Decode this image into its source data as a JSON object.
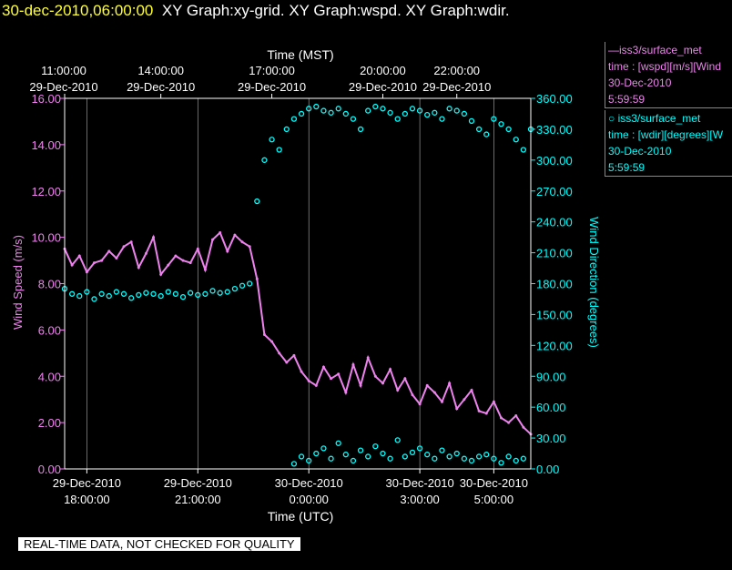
{
  "header": {
    "timestamp": "30-dec-2010,06:00:00",
    "graphs": "XY Graph:xy-grid.  XY Graph:wspd.  XY Graph:wdir."
  },
  "legend": {
    "wspd": {
      "source": "—iss3/surface_met",
      "var": "time : [wspd][m/s][Wind",
      "date": "30-Dec-2010",
      "time": "5:59:59"
    },
    "wdir": {
      "source": "○ iss3/surface_met",
      "var": "time : [wdir][degrees][W",
      "date": "30-Dec-2010",
      "time": "5:59:59"
    }
  },
  "note": "REAL-TIME DATA, NOT CHECKED FOR QUALITY",
  "colors": {
    "wspd": "#ee82ee",
    "wdir": "#00ffff",
    "grid": "#ffffff",
    "timestamp": "#ffff33"
  },
  "chart_data": {
    "type": "line",
    "top_axis_title": "Time (MST)",
    "bottom_axis_title": "Time (UTC)",
    "left_axis_title": "Wind Speed (m/s)",
    "right_axis_title": "Wind Direction (degrees)",
    "x_range_utc_hours": [
      -6.6,
      6.0
    ],
    "top_ticks": [
      {
        "x": -7.0,
        "time": "11:00:00",
        "date": "29-Dec-2010"
      },
      {
        "x": -4.0,
        "time": "14:00:00",
        "date": "29-Dec-2010"
      },
      {
        "x": -1.0,
        "time": "17:00:00",
        "date": "29-Dec-2010"
      },
      {
        "x": 2.0,
        "time": "20:00:00",
        "date": "29-Dec-2010"
      },
      {
        "x": 4.0,
        "time": "22:00:00",
        "date": "29-Dec-2010"
      }
    ],
    "bottom_ticks": [
      {
        "x": -6.0,
        "date": "29-Dec-2010",
        "time": "18:00:00"
      },
      {
        "x": -3.0,
        "date": "29-Dec-2010",
        "time": "21:00:00"
      },
      {
        "x": 0.0,
        "date": "30-Dec-2010",
        "time": "0:00:00"
      },
      {
        "x": 3.0,
        "date": "30-Dec-2010",
        "time": "3:00:00"
      },
      {
        "x": 5.0,
        "date": "30-Dec-2010",
        "time": "5:00:00"
      }
    ],
    "left_ticks": [
      "0.00",
      "2.00",
      "4.00",
      "6.00",
      "8.00",
      "10.00",
      "12.00",
      "14.00",
      "16.00"
    ],
    "right_ticks": [
      "0.00",
      "30.00",
      "60.00",
      "90.00",
      "120.00",
      "150.00",
      "180.00",
      "210.00",
      "240.00",
      "270.00",
      "300.00",
      "330.00",
      "360.00"
    ],
    "ylim_wspd": [
      0,
      16
    ],
    "ylim_wdir": [
      0,
      360
    ],
    "grid": true,
    "series": [
      {
        "key": "wspd",
        "axis": "left",
        "style": "line",
        "x": [
          -6.6,
          -6.4,
          -6.2,
          -6.0,
          -5.8,
          -5.6,
          -5.4,
          -5.2,
          -5.0,
          -4.8,
          -4.6,
          -4.4,
          -4.2,
          -4.0,
          -3.8,
          -3.6,
          -3.4,
          -3.2,
          -3.0,
          -2.8,
          -2.6,
          -2.4,
          -2.2,
          -2.0,
          -1.8,
          -1.6,
          -1.4,
          -1.2,
          -1.0,
          -0.8,
          -0.6,
          -0.4,
          -0.2,
          0.0,
          0.2,
          0.4,
          0.6,
          0.8,
          1.0,
          1.2,
          1.4,
          1.6,
          1.8,
          2.0,
          2.2,
          2.4,
          2.6,
          2.8,
          3.0,
          3.2,
          3.4,
          3.6,
          3.8,
          4.0,
          4.2,
          4.4,
          4.6,
          4.8,
          5.0,
          5.2,
          5.4,
          5.6,
          5.8,
          6.0
        ],
        "values": [
          9.5,
          8.8,
          9.2,
          8.5,
          8.9,
          9.0,
          9.4,
          9.1,
          9.6,
          9.8,
          8.7,
          9.3,
          10.0,
          8.4,
          8.8,
          9.2,
          9.0,
          8.9,
          9.5,
          8.6,
          9.9,
          10.2,
          9.4,
          10.1,
          9.8,
          9.6,
          8.2,
          5.8,
          5.5,
          5.0,
          4.6,
          4.9,
          4.2,
          3.8,
          3.6,
          4.4,
          3.9,
          4.1,
          3.3,
          4.5,
          3.6,
          4.8,
          4.0,
          3.7,
          4.3,
          3.4,
          3.9,
          3.2,
          2.8,
          3.6,
          3.3,
          2.9,
          3.7,
          2.6,
          3.0,
          3.4,
          2.5,
          2.4,
          2.9,
          2.2,
          2.0,
          2.3,
          1.8,
          1.5
        ]
      },
      {
        "key": "wdir",
        "axis": "right",
        "style": "points",
        "x": [
          -6.6,
          -6.4,
          -6.2,
          -6.0,
          -5.8,
          -5.6,
          -5.4,
          -5.2,
          -5.0,
          -4.8,
          -4.6,
          -4.4,
          -4.2,
          -4.0,
          -3.8,
          -3.6,
          -3.4,
          -3.2,
          -3.0,
          -2.8,
          -2.6,
          -2.4,
          -2.2,
          -2.0,
          -1.8,
          -1.6,
          -1.4,
          -1.2,
          -1.0,
          -0.8,
          -0.6,
          -0.4,
          -0.2,
          0.0,
          0.2,
          0.4,
          0.6,
          0.8,
          1.0,
          1.2,
          1.4,
          1.6,
          1.8,
          2.0,
          2.2,
          2.4,
          2.6,
          2.8,
          3.0,
          3.2,
          3.4,
          3.6,
          3.8,
          4.0,
          4.2,
          4.4,
          4.6,
          4.8,
          5.0,
          5.2,
          5.4,
          5.6,
          5.8,
          6.0
        ],
        "values": [
          175,
          170,
          168,
          172,
          165,
          170,
          168,
          172,
          170,
          166,
          169,
          171,
          170,
          168,
          172,
          170,
          167,
          171,
          169,
          170,
          173,
          171,
          172,
          175,
          178,
          180,
          260,
          300,
          320,
          310,
          330,
          340,
          345,
          350,
          352,
          348,
          346,
          350,
          345,
          340,
          330,
          348,
          352,
          350,
          346,
          340,
          345,
          350,
          348,
          344,
          346,
          340,
          350,
          348,
          345,
          338,
          330,
          325,
          340,
          335,
          330,
          320,
          310,
          330
        ]
      },
      {
        "key": "wdir_low",
        "axis": "right",
        "style": "points",
        "x": [
          -0.4,
          -0.2,
          0.0,
          0.2,
          0.4,
          0.6,
          0.8,
          1.0,
          1.2,
          1.4,
          1.6,
          1.8,
          2.0,
          2.2,
          2.4,
          2.6,
          2.8,
          3.0,
          3.2,
          3.4,
          3.6,
          3.8,
          4.0,
          4.2,
          4.4,
          4.6,
          4.8,
          5.0,
          5.2,
          5.4,
          5.6,
          5.8
        ],
        "values": [
          5,
          12,
          8,
          15,
          20,
          10,
          25,
          14,
          8,
          18,
          12,
          22,
          15,
          10,
          28,
          12,
          16,
          20,
          14,
          10,
          18,
          12,
          15,
          10,
          8,
          12,
          14,
          10,
          6,
          12,
          8,
          10
        ]
      }
    ]
  }
}
